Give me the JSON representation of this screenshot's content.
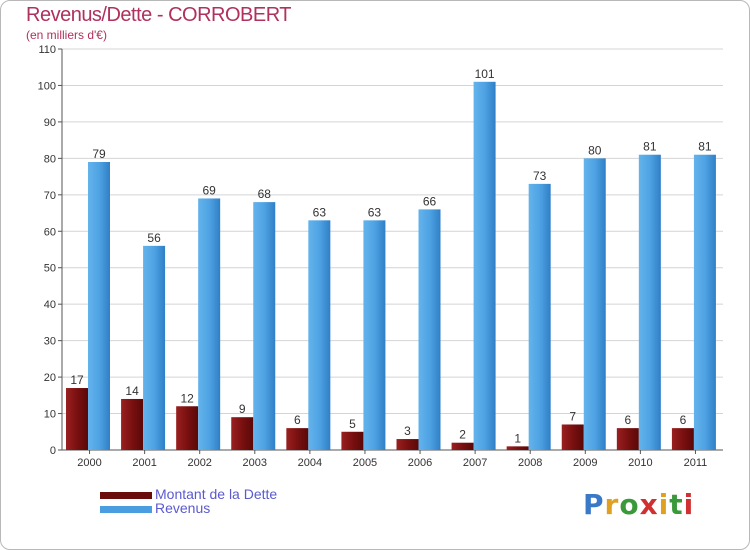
{
  "chart_data": {
    "type": "bar",
    "title": "Revenus/Dette - CORROBERT",
    "subtitle": "(en milliers d'€)",
    "categories": [
      "2000",
      "2001",
      "2002",
      "2003",
      "2004",
      "2005",
      "2006",
      "2007",
      "2008",
      "2009",
      "2010",
      "2011"
    ],
    "series": [
      {
        "name": "Montant de la Dette",
        "color": "#7a1010",
        "values": [
          17,
          14,
          12,
          9,
          6,
          5,
          3,
          2,
          1,
          7,
          6,
          6
        ]
      },
      {
        "name": "Revenus",
        "color": "#4a9ee0",
        "values": [
          79,
          56,
          69,
          68,
          63,
          63,
          66,
          101,
          73,
          80,
          81,
          81
        ]
      }
    ],
    "ylim": [
      0,
      110
    ],
    "yticks": [
      0,
      10,
      20,
      30,
      40,
      50,
      60,
      70,
      80,
      90,
      100,
      110
    ],
    "grid": true,
    "legend_position": "bottom-left"
  },
  "legend": {
    "debt_label": "Montant de la Dette",
    "revenue_label": "Revenus"
  },
  "logo": {
    "letters": [
      "P",
      "r",
      "o",
      "x",
      "i",
      "t",
      "i"
    ],
    "colors": [
      "#3a78c8",
      "#e0a020",
      "#3a9a3a",
      "#d03030",
      "#e0a020",
      "#3a9a3a",
      "#d03030"
    ]
  }
}
